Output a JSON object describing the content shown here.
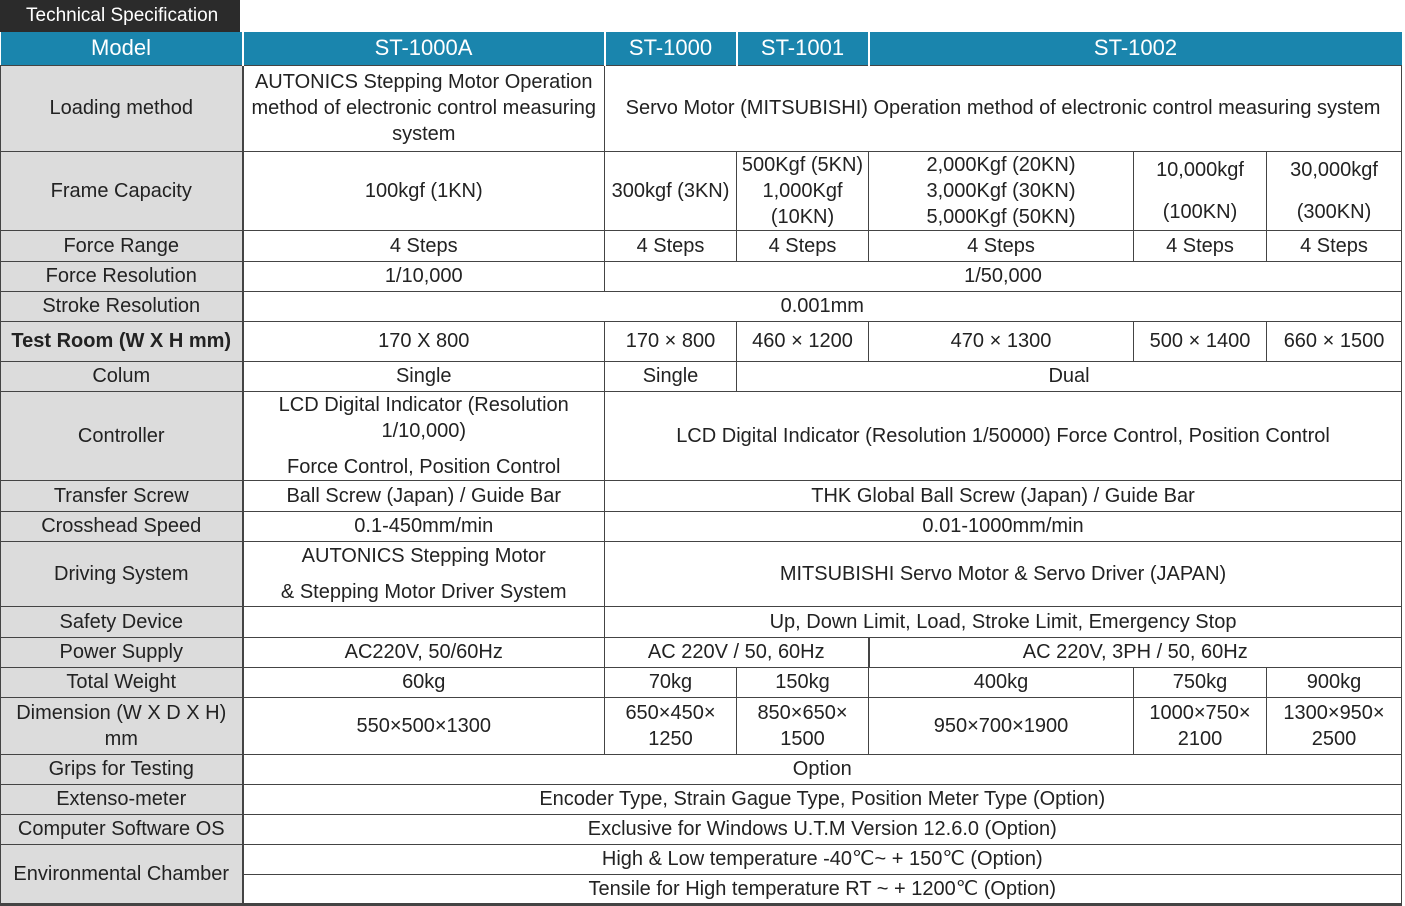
{
  "title": "Technical Specification",
  "header": {
    "model": "Model",
    "st1000a": "ST-1000A",
    "st1000": "ST-1000",
    "st1001": "ST-1001",
    "st1002": "ST-1002"
  },
  "rows": {
    "loading": {
      "label": "Loading method",
      "a": "AUTONICS Stepping Motor Operation method of electronic control measuring system",
      "rest": "Servo Motor (MITSUBISHI) Operation method of electronic control measuring system"
    },
    "capacity": {
      "label": "Frame Capacity",
      "a": "100kgf (1KN)",
      "b": "300kgf (3KN)",
      "c1": "500Kgf (5KN)",
      "c2": "1,000Kgf",
      "c3": "(10KN)",
      "d1": "2,000Kgf (20KN)",
      "d2": "3,000Kgf (30KN)",
      "d3": "5,000Kgf (50KN)",
      "e1": "10,000kgf",
      "e2": "(100KN)",
      "f1": "30,000kgf",
      "f2": "(300KN)"
    },
    "force_range": {
      "label": "Force Range",
      "a": "4 Steps",
      "b": "4 Steps",
      "c": "4 Steps",
      "d": "4 Steps",
      "e": "4 Steps",
      "f": "4 Steps"
    },
    "force_res": {
      "label": "Force Resolution",
      "a": "1/10,000",
      "rest": "1/50,000"
    },
    "stroke_res": {
      "label": "Stroke Resolution",
      "all": "0.001mm"
    },
    "test_room": {
      "label": "Test Room (W X H mm)",
      "a": "170 X 800",
      "b": "170 × 800",
      "c": "460 × 1200",
      "d": "470 × 1300",
      "e": "500 × 1400",
      "f": "660 × 1500"
    },
    "colum": {
      "label": "Colum",
      "a": "Single",
      "b": "Single",
      "rest": "Dual"
    },
    "controller": {
      "label": "Controller",
      "a1": "LCD Digital Indicator  (Resolution 1/10,000)",
      "a2": "Force Control, Position Control",
      "rest": "LCD Digital Indicator (Resolution 1/50000) Force Control, Position Control"
    },
    "transfer": {
      "label": "Transfer Screw",
      "a": "Ball Screw (Japan) / Guide Bar",
      "rest": "THK Global Ball Screw (Japan) / Guide Bar"
    },
    "speed": {
      "label": "Crosshead Speed",
      "a": "0.1-450mm/min",
      "rest": "0.01-1000mm/min"
    },
    "driving": {
      "label": "Driving System",
      "a1": "AUTONICS Stepping Motor",
      "a2": "& Stepping Motor Driver System",
      "rest": "MITSUBISHI Servo Motor & Servo Driver (JAPAN)"
    },
    "safety": {
      "label": "Safety Device",
      "a": "",
      "rest": "Up, Down Limit, Load, Stroke Limit, Emergency Stop"
    },
    "power": {
      "label": "Power Supply",
      "a": "AC220V,  50/60Hz",
      "bc": "AC 220V / 50, 60Hz",
      "def": "AC 220V, 3PH / 50, 60Hz"
    },
    "weight": {
      "label": "Total Weight",
      "a": "60kg",
      "b": "70kg",
      "c": "150kg",
      "d": "400kg",
      "e": "750kg",
      "f": "900kg"
    },
    "dimension": {
      "label": "Dimension (W X D X H) mm",
      "a": "550×500×1300",
      "b1": "650×450×",
      "b2": "1250",
      "c1": "850×650×",
      "c2": "1500",
      "d": "950×700×1900",
      "e1": "1000×750×",
      "e2": "2100",
      "f1": "1300×950×",
      "f2": "2500"
    },
    "grips": {
      "label": "Grips for Testing",
      "all": "Option"
    },
    "extenso": {
      "label": "Extenso-meter",
      "all": "Encoder Type, Strain Gague Type, Position Meter Type (Option)"
    },
    "software": {
      "label": "Computer Software OS",
      "all": "Exclusive for Windows U.T.M Version 12.6.0 (Option)"
    },
    "chamber": {
      "label": "Environmental Chamber",
      "line1": "High & Low temperature  -40℃~ + 150℃ (Option)",
      "line2": "Tensile for High temperature RT ~ + 1200℃ (Option)"
    }
  }
}
